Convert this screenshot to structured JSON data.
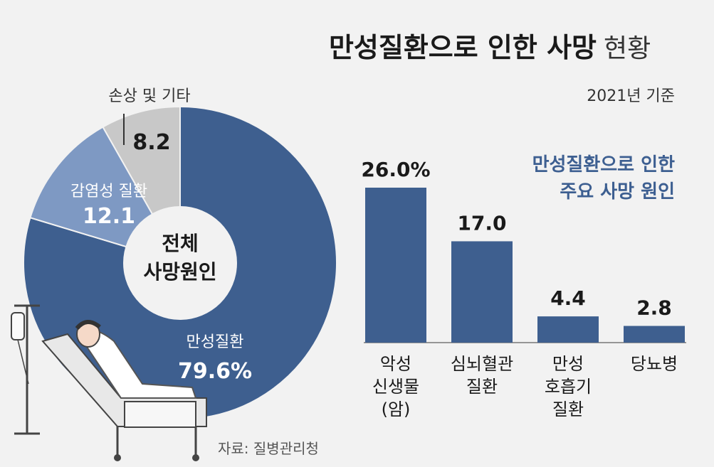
{
  "header": {
    "title": "만성질환으로 인한 사망",
    "title_suffix": "현황",
    "date": "2021년 기준"
  },
  "source": "자료: 질병관리청",
  "colors": {
    "dark_blue": "#3e5f8f",
    "mid_blue": "#7e99c3",
    "gray": "#c8c8c8",
    "background": "#f2f2f2"
  },
  "chart_data": [
    {
      "type": "pie",
      "center_label": [
        "전체",
        "사망원인"
      ],
      "slices": [
        {
          "label": "만성질환",
          "value": 79.6,
          "value_text": "79.6%",
          "color": "#3e5f8f"
        },
        {
          "label": "감염성 질환",
          "value": 12.1,
          "value_text": "12.1",
          "color": "#7e99c3"
        },
        {
          "label": "손상 및 기타",
          "value": 8.2,
          "value_text": "8.2",
          "color": "#c8c8c8"
        }
      ]
    },
    {
      "type": "bar",
      "title": [
        "만성질환으로 인한",
        "주요 사망 원인"
      ],
      "categories": [
        [
          "악성",
          "신생물",
          "(암)"
        ],
        [
          "심뇌혈관",
          "질환"
        ],
        [
          "만성",
          "호흡기",
          "질환"
        ],
        [
          "당뇨병"
        ]
      ],
      "values": [
        26.0,
        17.0,
        4.4,
        2.8
      ],
      "value_labels": [
        "26.0%",
        "17.0",
        "4.4",
        "2.8"
      ],
      "color": "#3e5f8f"
    }
  ]
}
